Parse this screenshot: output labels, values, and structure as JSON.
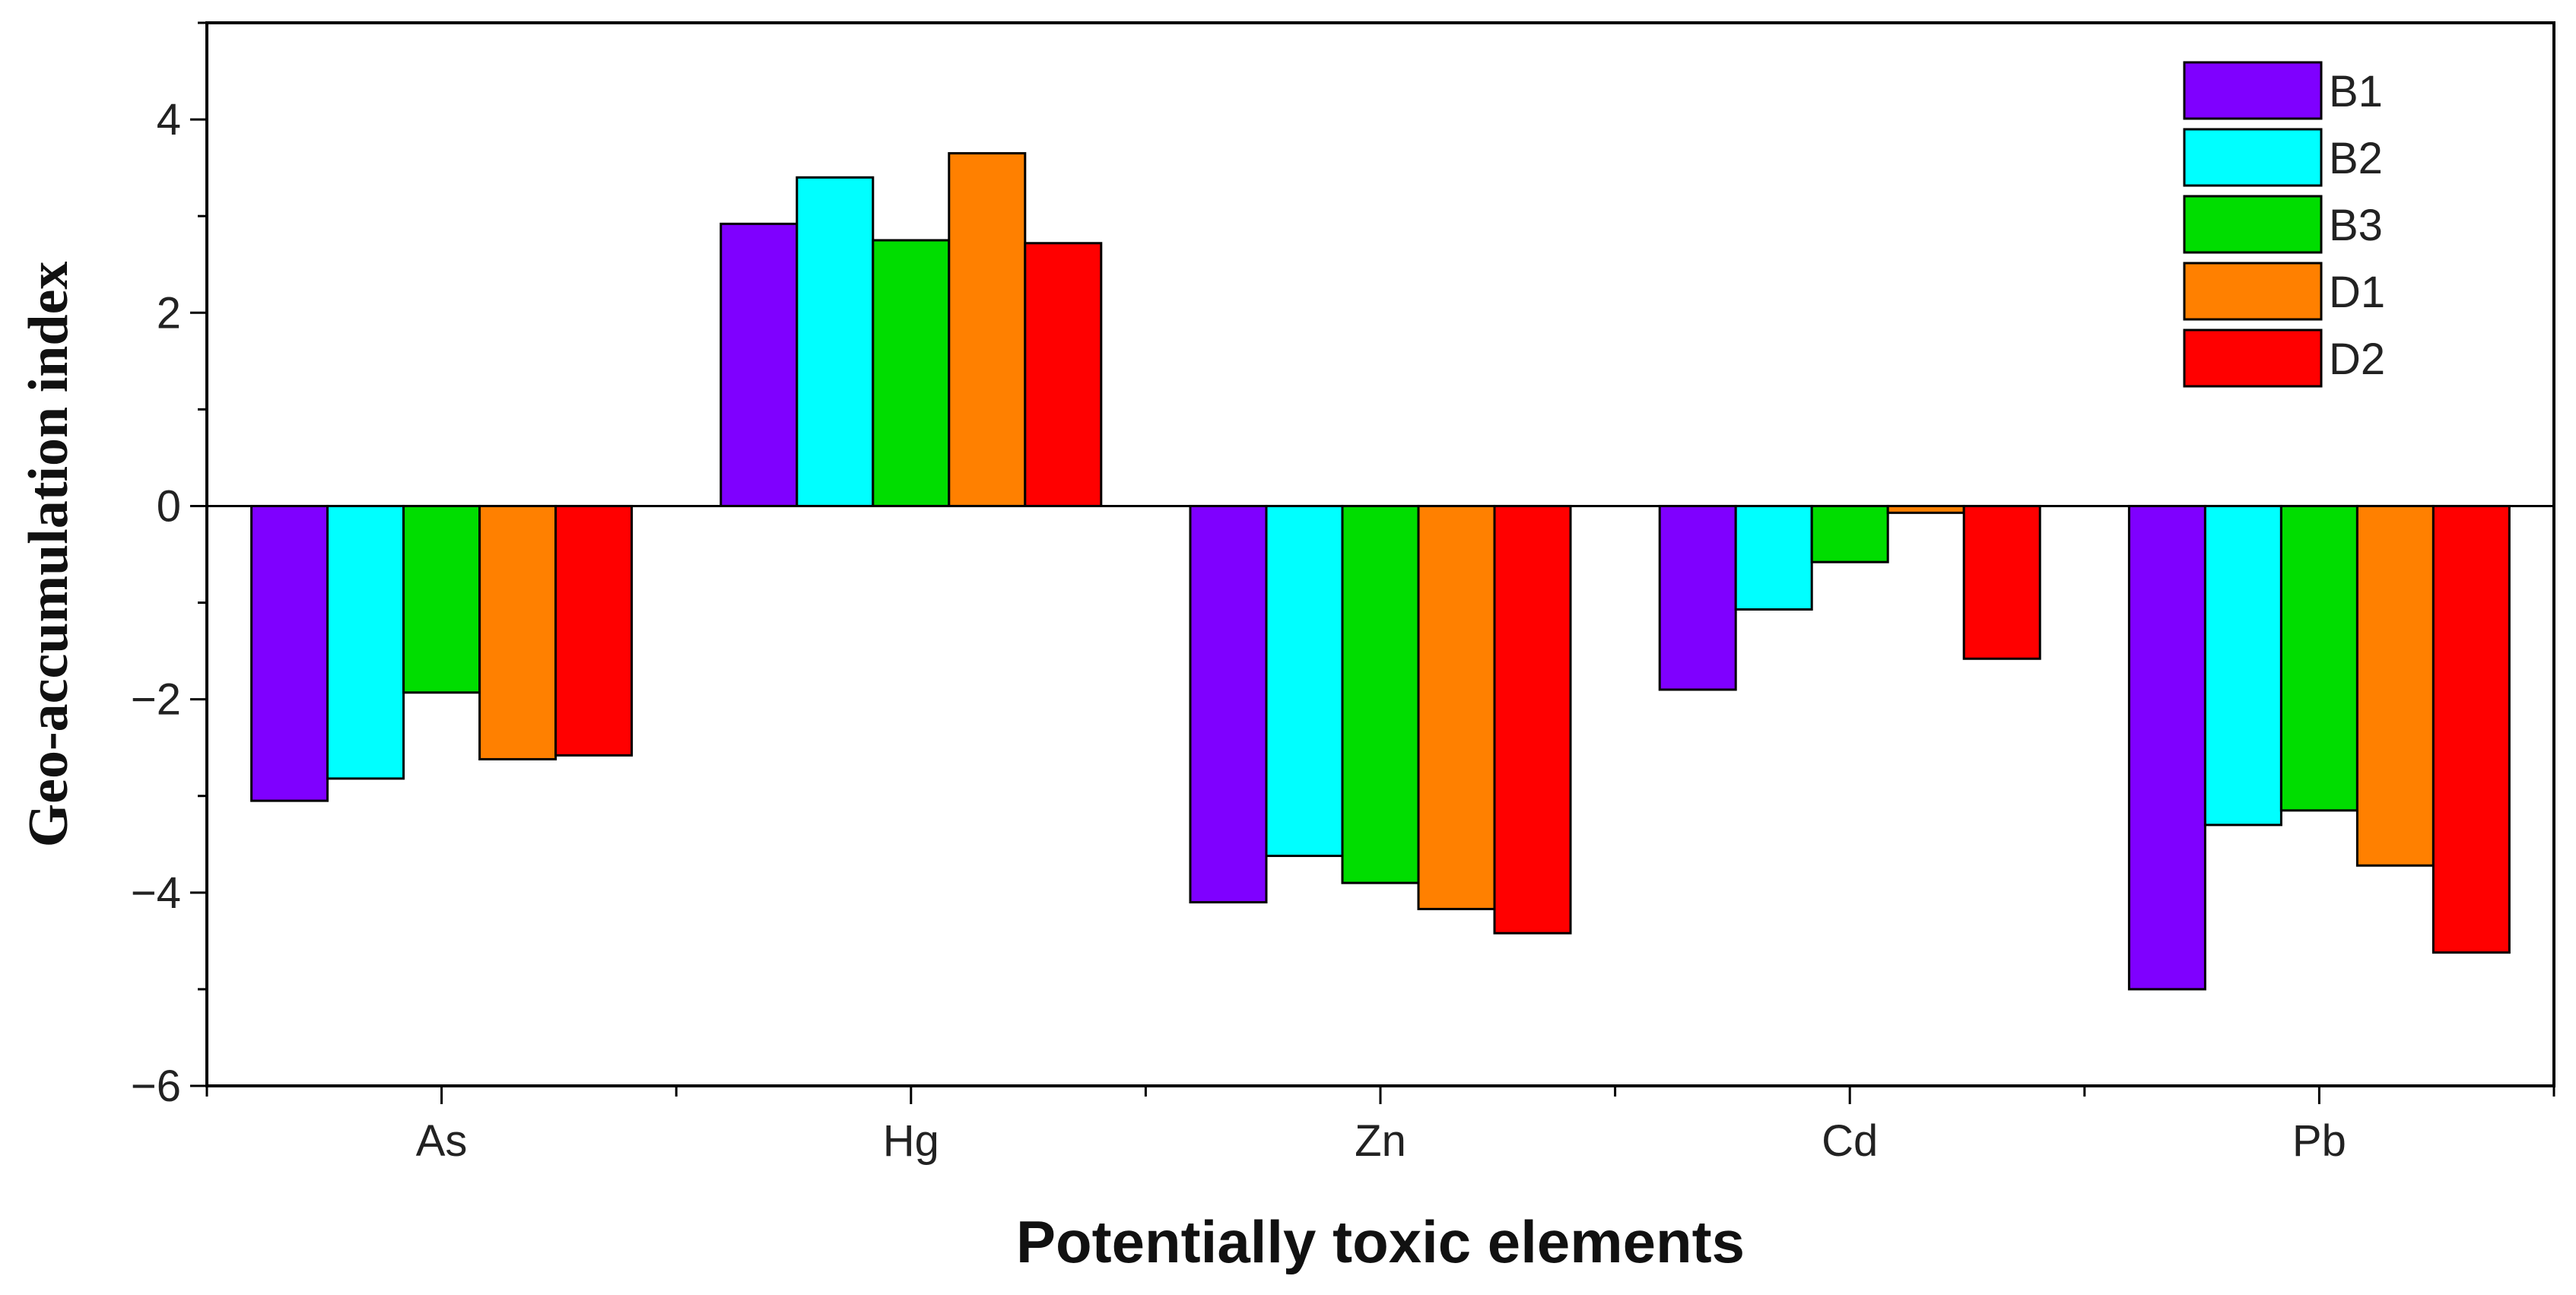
{
  "chart_data": {
    "type": "bar",
    "title": "",
    "xlabel": "Potentially toxic elements",
    "ylabel": "Geo-accumulation index",
    "categories": [
      "As",
      "Hg",
      "Zn",
      "Cd",
      "Pb"
    ],
    "ylim": [
      -6,
      5
    ],
    "yticks": [
      -6,
      -4,
      -2,
      0,
      2,
      4
    ],
    "ytick_labels": [
      "−6",
      "−4",
      "−2",
      "0",
      "2",
      "4"
    ],
    "grid": false,
    "legend_position": "top-right",
    "series": [
      {
        "name": "B1",
        "color": "#7f00ff",
        "values": [
          -3.05,
          2.92,
          -4.1,
          -1.9,
          -5.0
        ]
      },
      {
        "name": "B2",
        "color": "#00ffff",
        "values": [
          -2.82,
          3.4,
          -3.62,
          -1.07,
          -3.3
        ]
      },
      {
        "name": "B3",
        "color": "#00dd00",
        "values": [
          -1.93,
          2.75,
          -3.9,
          -0.58,
          -3.15
        ]
      },
      {
        "name": "D1",
        "color": "#ff8000",
        "values": [
          -2.62,
          3.65,
          -4.17,
          -0.07,
          -3.72
        ]
      },
      {
        "name": "D2",
        "color": "#ff0000",
        "values": [
          -2.58,
          2.72,
          -4.42,
          -1.58,
          -4.62
        ]
      }
    ]
  }
}
